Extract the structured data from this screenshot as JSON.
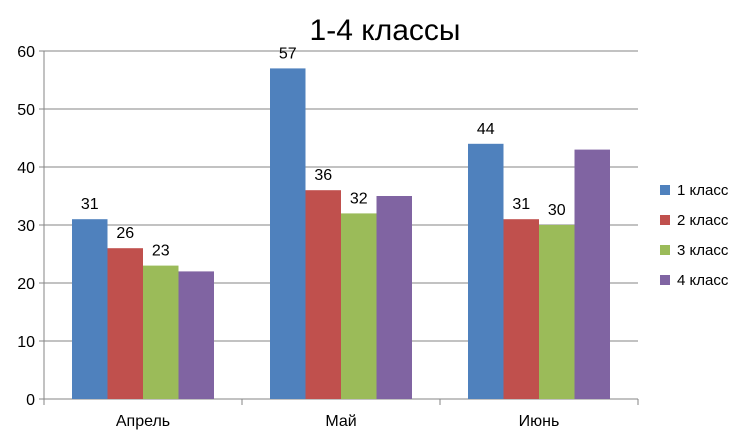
{
  "chart_data": {
    "type": "bar",
    "title": "1-4 классы",
    "xlabel": "",
    "ylabel": "",
    "categories": [
      "Апрель",
      "Май",
      "Июнь"
    ],
    "series": [
      {
        "name": "1 класс",
        "color": "#4F81BD",
        "values": [
          31,
          57,
          44
        ],
        "show_labels": true
      },
      {
        "name": "2 класс",
        "color": "#C0504D",
        "values": [
          26,
          36,
          31
        ],
        "show_labels": true
      },
      {
        "name": "3 класс",
        "color": "#9BBB59",
        "values": [
          23,
          32,
          30
        ],
        "show_labels": true
      },
      {
        "name": "4 класс",
        "color": "#8064A2",
        "values": [
          22,
          35,
          43
        ],
        "show_labels": false
      }
    ],
    "ylim": [
      0,
      60
    ],
    "yticks": [
      0,
      10,
      20,
      30,
      40,
      50,
      60
    ],
    "grid": true,
    "legend": "right"
  }
}
